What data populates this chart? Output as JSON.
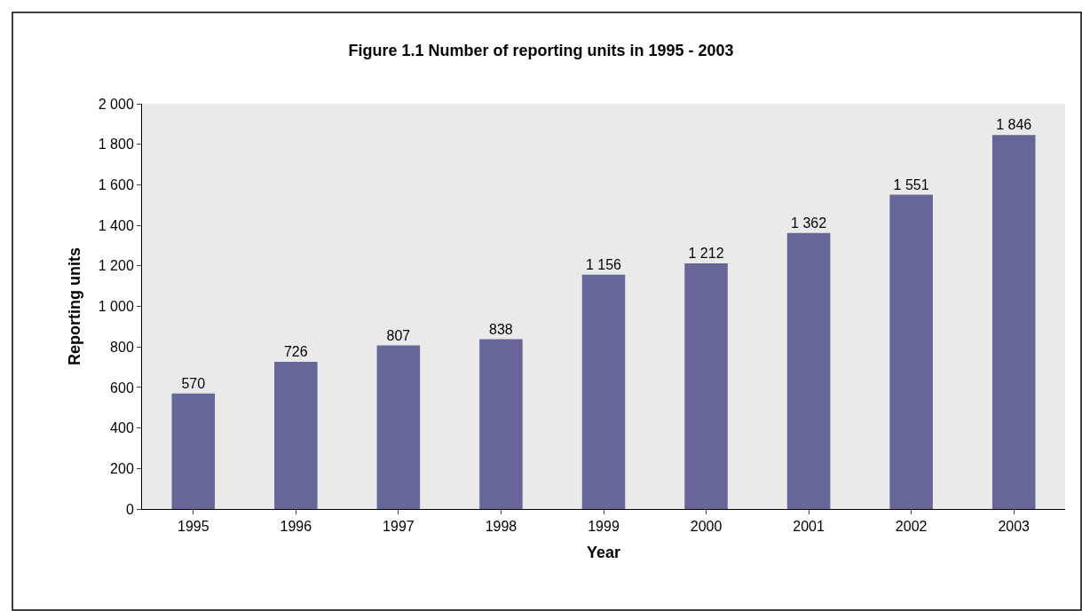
{
  "chart_data": {
    "type": "bar",
    "title": "Figure 1.1 Number of reporting units in 1995 - 2003",
    "xlabel": "Year",
    "ylabel": "Reporting units",
    "categories": [
      "1995",
      "1996",
      "1997",
      "1998",
      "1999",
      "2000",
      "2001",
      "2002",
      "2003"
    ],
    "values": [
      570,
      726,
      807,
      838,
      1156,
      1212,
      1362,
      1551,
      1846
    ],
    "value_labels": [
      "570",
      "726",
      "807",
      "838",
      "1 156",
      "1 212",
      "1 362",
      "1 551",
      "1 846"
    ],
    "color": "#666699",
    "ylim": [
      0,
      2000
    ],
    "yticks": [
      0,
      200,
      400,
      600,
      800,
      {
        "value": 1000,
        "label": "1 000"
      },
      {
        "value": 1200,
        "label": "1 200"
      },
      {
        "value": 1400,
        "label": "1 400"
      },
      {
        "value": 1600,
        "label": "1 600"
      },
      {
        "value": 1800,
        "label": "1 800"
      },
      {
        "value": 2000,
        "label": "2 000"
      }
    ],
    "grid": false,
    "legend": false
  }
}
